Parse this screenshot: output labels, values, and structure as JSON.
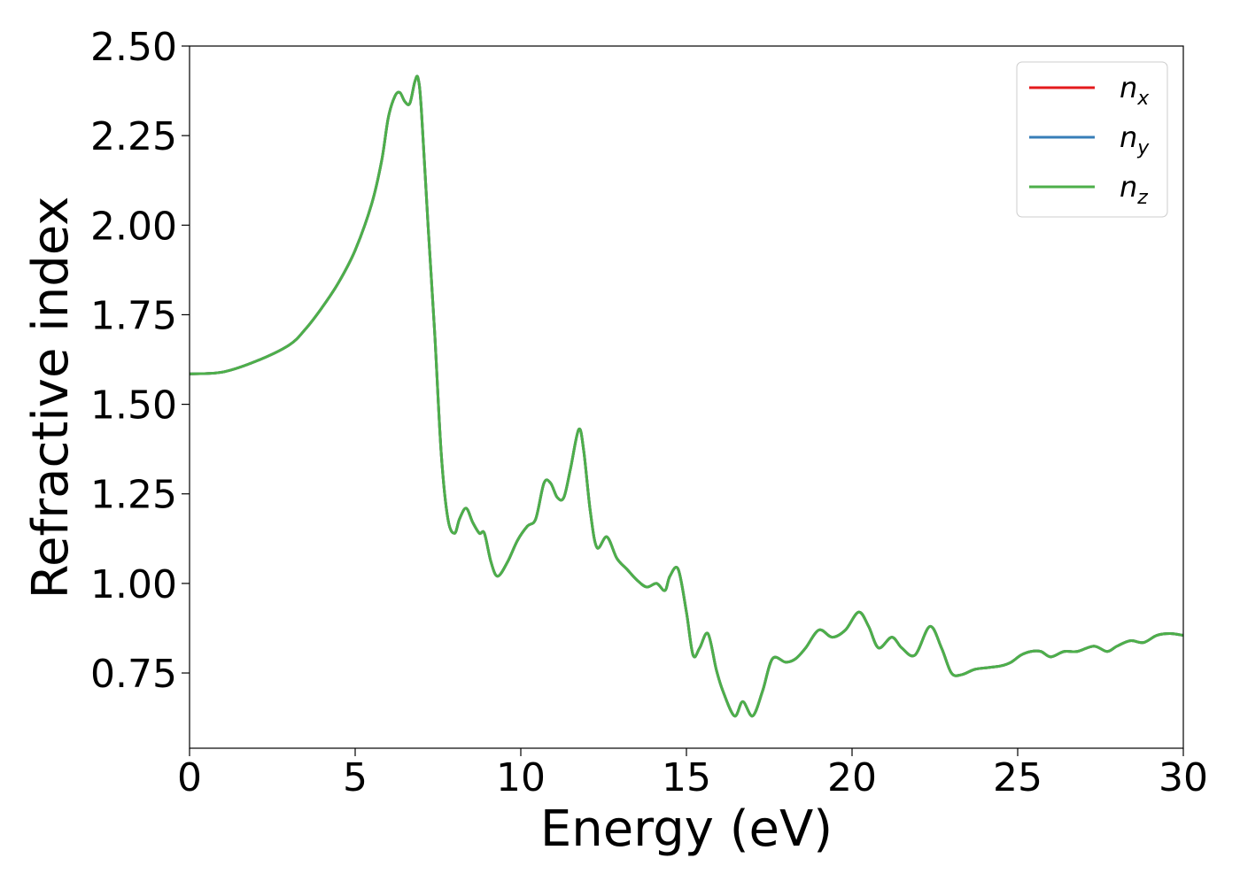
{
  "chart_data": {
    "type": "line",
    "title": "",
    "xlabel": "Energy (eV)",
    "ylabel": "Refractive index",
    "xlim": [
      0,
      30
    ],
    "ylim": [
      0.54,
      2.5
    ],
    "xticks": [
      0,
      5,
      10,
      15,
      20,
      25,
      30
    ],
    "yticks": [
      0.75,
      1.0,
      1.25,
      1.5,
      1.75,
      2.0,
      2.25,
      2.5
    ],
    "ytick_labels": [
      "0.75",
      "1.00",
      "1.25",
      "1.50",
      "1.75",
      "2.00",
      "2.25",
      "2.50"
    ],
    "xtick_labels": [
      "0",
      "5",
      "10",
      "15",
      "20",
      "25",
      "30"
    ],
    "grid": false,
    "legend_position": "top-right",
    "legend": [
      {
        "base": "n",
        "sub": "x",
        "color": "#e41a1c"
      },
      {
        "base": "n",
        "sub": "y",
        "color": "#377eb8"
      },
      {
        "base": "n",
        "sub": "z",
        "color": "#4daf4a"
      }
    ],
    "series": [
      {
        "name": "n_x",
        "color": "#e41a1c",
        "x": [
          0,
          1,
          2,
          3,
          3.5,
          4,
          4.5,
          5,
          5.5,
          5.8,
          6.0,
          6.2,
          6.35,
          6.5,
          6.65,
          6.8,
          6.9,
          7.0,
          7.2,
          7.4,
          7.6,
          7.8,
          8.0,
          8.15,
          8.35,
          8.55,
          8.75,
          8.9,
          9.1,
          9.3,
          9.6,
          9.9,
          10.2,
          10.45,
          10.7,
          10.9,
          11.1,
          11.3,
          11.5,
          11.75,
          11.9,
          12.1,
          12.3,
          12.6,
          12.9,
          13.2,
          13.5,
          13.8,
          14.1,
          14.35,
          14.5,
          14.75,
          15.0,
          15.2,
          15.4,
          15.65,
          15.9,
          16.1,
          16.45,
          16.7,
          17.0,
          17.3,
          17.6,
          18.0,
          18.3,
          18.6,
          19.0,
          19.4,
          19.8,
          20.2,
          20.5,
          20.8,
          21.2,
          21.5,
          21.9,
          22.35,
          22.7,
          23.0,
          23.3,
          23.7,
          24.1,
          24.5,
          24.8,
          25.1,
          25.4,
          25.7,
          26.0,
          26.4,
          26.8,
          27.3,
          27.7,
          28.0,
          28.4,
          28.8,
          29.2,
          29.6,
          30.0
        ],
        "y": [
          1.585,
          1.59,
          1.62,
          1.665,
          1.71,
          1.77,
          1.84,
          1.93,
          2.06,
          2.18,
          2.3,
          2.36,
          2.37,
          2.345,
          2.34,
          2.4,
          2.41,
          2.32,
          2.0,
          1.7,
          1.36,
          1.18,
          1.14,
          1.18,
          1.21,
          1.17,
          1.14,
          1.14,
          1.06,
          1.02,
          1.06,
          1.12,
          1.16,
          1.18,
          1.28,
          1.28,
          1.24,
          1.24,
          1.32,
          1.43,
          1.37,
          1.2,
          1.1,
          1.13,
          1.07,
          1.04,
          1.01,
          0.99,
          1.0,
          0.98,
          1.02,
          1.04,
          0.92,
          0.8,
          0.82,
          0.86,
          0.76,
          0.7,
          0.63,
          0.67,
          0.63,
          0.7,
          0.79,
          0.78,
          0.79,
          0.82,
          0.87,
          0.85,
          0.87,
          0.92,
          0.88,
          0.82,
          0.85,
          0.82,
          0.8,
          0.88,
          0.82,
          0.75,
          0.745,
          0.76,
          0.765,
          0.77,
          0.78,
          0.8,
          0.81,
          0.81,
          0.795,
          0.81,
          0.81,
          0.825,
          0.81,
          0.825,
          0.84,
          0.835,
          0.855,
          0.86,
          0.855
        ]
      },
      {
        "name": "n_y",
        "color": "#377eb8",
        "x": [
          0,
          1,
          2,
          3,
          3.5,
          4,
          4.5,
          5,
          5.5,
          5.8,
          6.0,
          6.2,
          6.35,
          6.5,
          6.65,
          6.8,
          6.9,
          7.0,
          7.2,
          7.4,
          7.6,
          7.8,
          8.0,
          8.15,
          8.35,
          8.55,
          8.75,
          8.9,
          9.1,
          9.3,
          9.6,
          9.9,
          10.2,
          10.45,
          10.7,
          10.9,
          11.1,
          11.3,
          11.5,
          11.75,
          11.9,
          12.1,
          12.3,
          12.6,
          12.9,
          13.2,
          13.5,
          13.8,
          14.1,
          14.35,
          14.5,
          14.75,
          15.0,
          15.2,
          15.4,
          15.65,
          15.9,
          16.1,
          16.45,
          16.7,
          17.0,
          17.3,
          17.6,
          18.0,
          18.3,
          18.6,
          19.0,
          19.4,
          19.8,
          20.2,
          20.5,
          20.8,
          21.2,
          21.5,
          21.9,
          22.35,
          22.7,
          23.0,
          23.3,
          23.7,
          24.1,
          24.5,
          24.8,
          25.1,
          25.4,
          25.7,
          26.0,
          26.4,
          26.8,
          27.3,
          27.7,
          28.0,
          28.4,
          28.8,
          29.2,
          29.6,
          30.0
        ],
        "y": [
          1.585,
          1.59,
          1.62,
          1.665,
          1.71,
          1.77,
          1.84,
          1.93,
          2.06,
          2.18,
          2.3,
          2.36,
          2.37,
          2.345,
          2.34,
          2.4,
          2.41,
          2.32,
          2.0,
          1.7,
          1.36,
          1.18,
          1.14,
          1.18,
          1.21,
          1.17,
          1.14,
          1.14,
          1.06,
          1.02,
          1.06,
          1.12,
          1.16,
          1.18,
          1.28,
          1.28,
          1.24,
          1.24,
          1.32,
          1.43,
          1.37,
          1.2,
          1.1,
          1.13,
          1.07,
          1.04,
          1.01,
          0.99,
          1.0,
          0.98,
          1.02,
          1.04,
          0.92,
          0.8,
          0.82,
          0.86,
          0.76,
          0.7,
          0.63,
          0.67,
          0.63,
          0.7,
          0.79,
          0.78,
          0.79,
          0.82,
          0.87,
          0.85,
          0.87,
          0.92,
          0.88,
          0.82,
          0.85,
          0.82,
          0.8,
          0.88,
          0.82,
          0.75,
          0.745,
          0.76,
          0.765,
          0.77,
          0.78,
          0.8,
          0.81,
          0.81,
          0.795,
          0.81,
          0.81,
          0.825,
          0.81,
          0.825,
          0.84,
          0.835,
          0.855,
          0.86,
          0.855
        ]
      },
      {
        "name": "n_z",
        "color": "#4daf4a",
        "x": [
          0,
          1,
          2,
          3,
          3.5,
          4,
          4.5,
          5,
          5.5,
          5.8,
          6.0,
          6.2,
          6.35,
          6.5,
          6.65,
          6.8,
          6.9,
          7.0,
          7.2,
          7.4,
          7.6,
          7.8,
          8.0,
          8.15,
          8.35,
          8.55,
          8.75,
          8.9,
          9.1,
          9.3,
          9.6,
          9.9,
          10.2,
          10.45,
          10.7,
          10.9,
          11.1,
          11.3,
          11.5,
          11.75,
          11.9,
          12.1,
          12.3,
          12.6,
          12.9,
          13.2,
          13.5,
          13.8,
          14.1,
          14.35,
          14.5,
          14.75,
          15.0,
          15.2,
          15.4,
          15.65,
          15.9,
          16.1,
          16.45,
          16.7,
          17.0,
          17.3,
          17.6,
          18.0,
          18.3,
          18.6,
          19.0,
          19.4,
          19.8,
          20.2,
          20.5,
          20.8,
          21.2,
          21.5,
          21.9,
          22.35,
          22.7,
          23.0,
          23.3,
          23.7,
          24.1,
          24.5,
          24.8,
          25.1,
          25.4,
          25.7,
          26.0,
          26.4,
          26.8,
          27.3,
          27.7,
          28.0,
          28.4,
          28.8,
          29.2,
          29.6,
          30.0
        ],
        "y": [
          1.585,
          1.59,
          1.62,
          1.665,
          1.71,
          1.77,
          1.84,
          1.93,
          2.06,
          2.18,
          2.3,
          2.36,
          2.37,
          2.345,
          2.34,
          2.4,
          2.41,
          2.32,
          2.0,
          1.7,
          1.36,
          1.18,
          1.14,
          1.18,
          1.21,
          1.17,
          1.14,
          1.14,
          1.06,
          1.02,
          1.06,
          1.12,
          1.16,
          1.18,
          1.28,
          1.28,
          1.24,
          1.24,
          1.32,
          1.43,
          1.37,
          1.2,
          1.1,
          1.13,
          1.07,
          1.04,
          1.01,
          0.99,
          1.0,
          0.98,
          1.02,
          1.04,
          0.92,
          0.8,
          0.82,
          0.86,
          0.76,
          0.7,
          0.63,
          0.67,
          0.63,
          0.7,
          0.79,
          0.78,
          0.79,
          0.82,
          0.87,
          0.85,
          0.87,
          0.92,
          0.88,
          0.82,
          0.85,
          0.82,
          0.8,
          0.88,
          0.82,
          0.75,
          0.745,
          0.76,
          0.765,
          0.77,
          0.78,
          0.8,
          0.81,
          0.81,
          0.795,
          0.81,
          0.81,
          0.825,
          0.81,
          0.825,
          0.84,
          0.835,
          0.855,
          0.86,
          0.855
        ]
      }
    ]
  }
}
